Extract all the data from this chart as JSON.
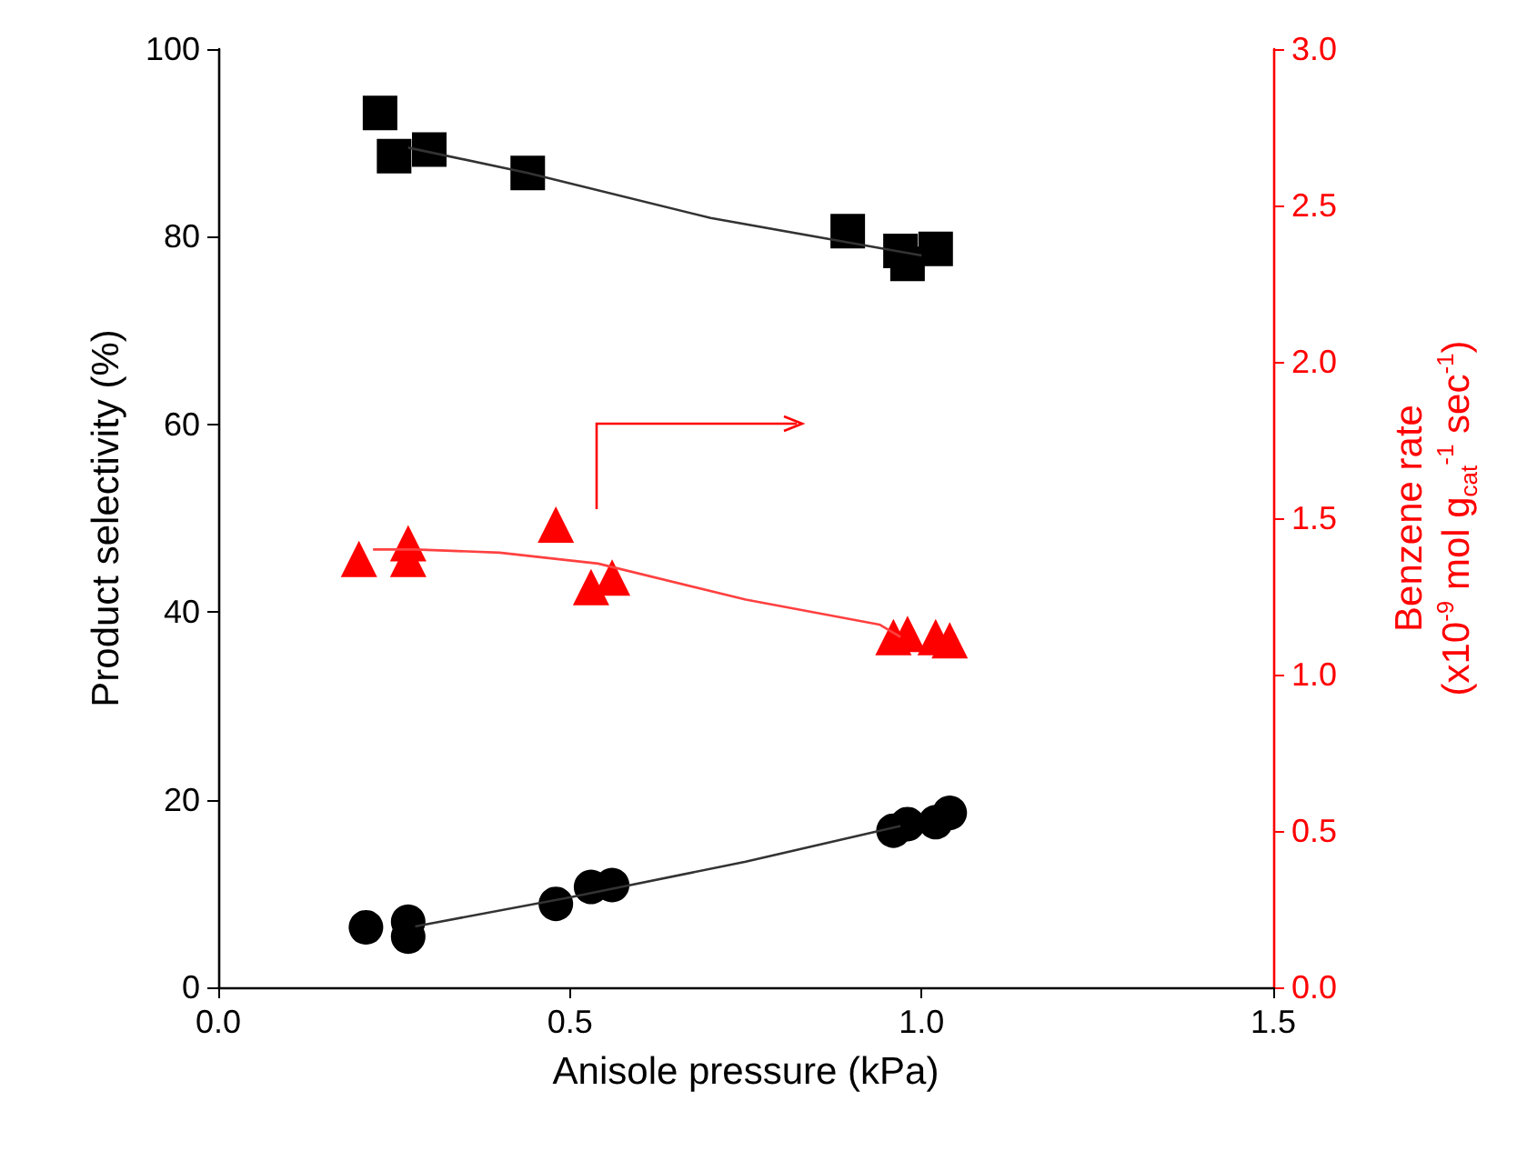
{
  "chart_data": {
    "type": "scatter",
    "xlabel": "Anisole pressure (kPa)",
    "ylabel": "Product selectivity (%)",
    "y2label": "Benzene rate\n(x10$^{-9}$ mol g$_{cat}$$^{-1}$ sec$^{-1}$)",
    "xlim": [
      0,
      1.5
    ],
    "xticks": [
      {
        "value": 0,
        "label": "0.0"
      },
      {
        "value": 0.5,
        "label": "0.5"
      },
      {
        "value": 1,
        "label": "1.0"
      },
      {
        "value": 1.5,
        "label": "1.5"
      }
    ],
    "ylim": [
      0,
      100
    ],
    "yticks": [
      0,
      20,
      40,
      60,
      80,
      100
    ],
    "y2lim": [
      0,
      3
    ],
    "y2ticks": [
      {
        "value": 0,
        "label": "0.0"
      },
      {
        "value": 0.5,
        "label": "0.5"
      },
      {
        "value": 1,
        "label": "1.0"
      },
      {
        "value": 1.5,
        "label": "1.5"
      },
      {
        "value": 2,
        "label": "2.0"
      },
      {
        "value": 2.5,
        "label": "2.5"
      },
      {
        "value": 3,
        "label": "3.0"
      }
    ],
    "grid": false,
    "series": [
      {
        "marker": "square",
        "color": "#000000",
        "x": [
          0.23,
          0.25,
          0.3,
          0.44,
          0.895,
          0.97,
          0.98,
          1.02
        ],
        "values": [
          93.2,
          88.6,
          89.3,
          86.8,
          80.6,
          78.5,
          77.1,
          78.7
        ]
      },
      {
        "marker": "circle",
        "color": "#000000",
        "x": [
          0.21,
          0.27,
          0.27,
          0.48,
          0.53,
          0.56,
          0.96,
          0.98,
          1.02,
          1.04
        ],
        "values": [
          6.4,
          7.0,
          5.4,
          8.9,
          10.7,
          10.9,
          16.7,
          17.4,
          17.6,
          18.6
        ]
      },
      {
        "marker": "triangle",
        "color": "#ff0000",
        "axis": "y2",
        "x": [
          0.2,
          0.27,
          0.27,
          0.48,
          0.53,
          0.56,
          0.96,
          0.98,
          1.02,
          1.04
        ],
        "values": [
          1.37,
          1.42,
          1.37,
          1.48,
          1.28,
          1.31,
          1.12,
          1.13,
          1.12,
          1.11
        ]
      },
      {
        "type": "line",
        "marker": "none",
        "color": "#333333",
        "x": [
          0.27,
          0.44,
          0.7,
          1.0
        ],
        "values": [
          89.5,
          86.8,
          82.0,
          78.0
        ]
      },
      {
        "type": "line",
        "marker": "none",
        "color": "#333333",
        "x": [
          0.28,
          0.5,
          0.75,
          0.97
        ],
        "values": [
          6.5,
          9.6,
          13.4,
          17.2
        ]
      },
      {
        "type": "line",
        "marker": "none",
        "color": "#ff4040",
        "axis": "y2",
        "x": [
          0.22,
          0.28,
          0.4,
          0.54,
          0.75,
          0.94,
          0.97
        ],
        "values": [
          1.4,
          1.4,
          1.39,
          1.355,
          1.24,
          1.16,
          1.12
        ]
      }
    ]
  }
}
